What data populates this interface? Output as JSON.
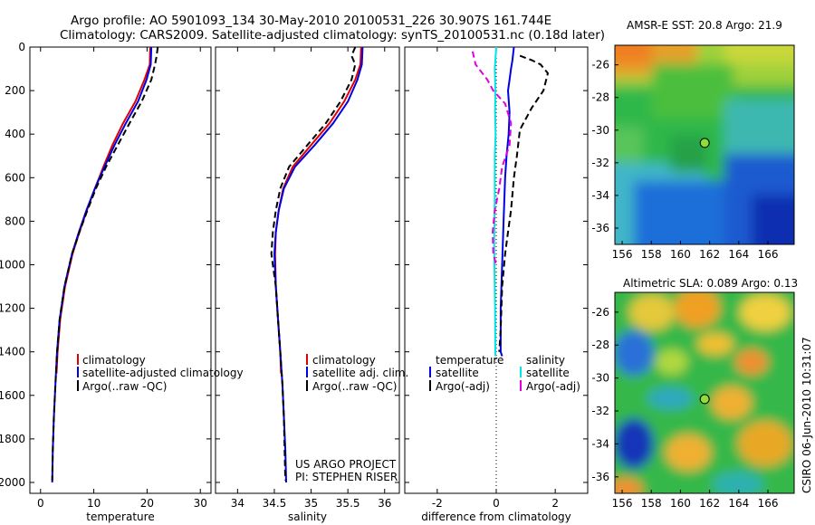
{
  "header": {
    "line1": "Argo profile: AO 5901093_134 30-May-2010 20100531_226 30.907S 161.744E",
    "line2": "Climatology: CARS2009. Satellite-adjusted climatology: synTS_20100531.nc (0.18d later)"
  },
  "side_stamp": "CSIRO 06-Jun-2010 10:31:07",
  "colors": {
    "red": "#e00000",
    "blue": "#0000e0",
    "black": "#000000",
    "cyan": "#00e5e5",
    "magenta": "#e000e0"
  },
  "chart_data": [
    {
      "id": "temperature",
      "type": "line",
      "xlabel": "temperature",
      "xlim": [
        -2,
        32
      ],
      "ylim": [
        2050,
        0
      ],
      "xticks": [
        0,
        10,
        20,
        30
      ],
      "yticks": [
        0,
        200,
        400,
        600,
        800,
        1000,
        1200,
        1400,
        1600,
        1800,
        2000
      ],
      "series": [
        {
          "name": "climatology",
          "color": "#e00000",
          "dash": "",
          "points": [
            [
              20.6,
              0
            ],
            [
              20.5,
              80
            ],
            [
              19.5,
              150
            ],
            [
              17.8,
              250
            ],
            [
              15.5,
              350
            ],
            [
              13.5,
              450
            ],
            [
              11.8,
              550
            ],
            [
              10.2,
              650
            ],
            [
              8.7,
              750
            ],
            [
              7.3,
              850
            ],
            [
              6.0,
              950
            ],
            [
              4.6,
              1100
            ],
            [
              3.7,
              1250
            ],
            [
              3.2,
              1400
            ],
            [
              3.0,
              1500
            ]
          ]
        },
        {
          "name": "satellite-adjusted climatology",
          "color": "#0000e0",
          "dash": "",
          "points": [
            [
              20.8,
              0
            ],
            [
              20.7,
              80
            ],
            [
              19.9,
              150
            ],
            [
              18.3,
              250
            ],
            [
              16.0,
              350
            ],
            [
              13.9,
              450
            ],
            [
              12.0,
              550
            ],
            [
              10.2,
              650
            ],
            [
              8.6,
              750
            ],
            [
              7.2,
              850
            ],
            [
              5.9,
              950
            ],
            [
              4.5,
              1100
            ],
            [
              3.6,
              1250
            ],
            [
              3.1,
              1400
            ],
            [
              2.8,
              1550
            ],
            [
              2.5,
              1700
            ],
            [
              2.3,
              1850
            ],
            [
              2.2,
              2000
            ]
          ]
        },
        {
          "name": "Argo(..raw -QC)",
          "color": "#000000",
          "dash": "7,4",
          "points": [
            [
              22.0,
              0
            ],
            [
              21.8,
              40
            ],
            [
              21.5,
              80
            ],
            [
              20.8,
              150
            ],
            [
              19.0,
              250
            ],
            [
              16.7,
              350
            ],
            [
              14.5,
              450
            ],
            [
              12.3,
              550
            ],
            [
              10.4,
              650
            ],
            [
              8.8,
              750
            ],
            [
              7.3,
              850
            ],
            [
              5.9,
              950
            ],
            [
              4.5,
              1100
            ],
            [
              3.6,
              1250
            ],
            [
              3.1,
              1400
            ],
            [
              2.8,
              1550
            ],
            [
              2.5,
              1700
            ],
            [
              2.3,
              1850
            ],
            [
              2.2,
              1990
            ]
          ]
        }
      ],
      "legend": [
        "climatology",
        "satellite-adjusted climatology",
        "Argo(..raw -QC)"
      ]
    },
    {
      "id": "salinity",
      "type": "line",
      "xlabel": "salinity",
      "xlim": [
        33.7,
        36.2
      ],
      "ylim": [
        2050,
        0
      ],
      "xticks": [
        34,
        34.5,
        35,
        35.5,
        36
      ],
      "xticklabels": [
        "34",
        "34.5",
        "35",
        "35.5",
        "36"
      ],
      "series": [
        {
          "name": "climatology",
          "color": "#e00000",
          "dash": "",
          "points": [
            [
              35.68,
              0
            ],
            [
              35.67,
              80
            ],
            [
              35.6,
              150
            ],
            [
              35.45,
              250
            ],
            [
              35.25,
              350
            ],
            [
              35.0,
              450
            ],
            [
              34.75,
              550
            ],
            [
              34.62,
              650
            ],
            [
              34.56,
              750
            ],
            [
              34.52,
              850
            ],
            [
              34.51,
              950
            ],
            [
              34.52,
              1100
            ],
            [
              34.55,
              1250
            ],
            [
              34.58,
              1400
            ],
            [
              34.59,
              1500
            ]
          ]
        },
        {
          "name": "satellite adj. clim.",
          "color": "#0000e0",
          "dash": "",
          "points": [
            [
              35.7,
              0
            ],
            [
              35.69,
              80
            ],
            [
              35.63,
              150
            ],
            [
              35.5,
              250
            ],
            [
              35.3,
              350
            ],
            [
              35.05,
              450
            ],
            [
              34.78,
              550
            ],
            [
              34.63,
              650
            ],
            [
              34.56,
              750
            ],
            [
              34.52,
              850
            ],
            [
              34.5,
              950
            ],
            [
              34.52,
              1100
            ],
            [
              34.55,
              1250
            ],
            [
              34.58,
              1400
            ],
            [
              34.61,
              1550
            ],
            [
              34.63,
              1700
            ],
            [
              34.65,
              1850
            ],
            [
              34.66,
              2000
            ]
          ]
        },
        {
          "name": "Argo(..raw -QC)",
          "color": "#000000",
          "dash": "7,4",
          "points": [
            [
              35.6,
              0
            ],
            [
              35.55,
              40
            ],
            [
              35.6,
              80
            ],
            [
              35.55,
              150
            ],
            [
              35.4,
              250
            ],
            [
              35.2,
              350
            ],
            [
              34.95,
              450
            ],
            [
              34.7,
              550
            ],
            [
              34.58,
              650
            ],
            [
              34.52,
              750
            ],
            [
              34.48,
              850
            ],
            [
              34.46,
              950
            ],
            [
              34.48,
              1000
            ],
            [
              34.52,
              1100
            ],
            [
              34.55,
              1250
            ],
            [
              34.58,
              1400
            ],
            [
              34.61,
              1550
            ],
            [
              34.63,
              1700
            ],
            [
              34.64,
              1850
            ],
            [
              34.65,
              1990
            ]
          ]
        }
      ],
      "legend": [
        "climatology",
        "satellite adj. clim.",
        "Argo(..raw -QC)"
      ],
      "credits": [
        "US ARGO PROJECT",
        "PI: STEPHEN RISER"
      ]
    },
    {
      "id": "difference",
      "type": "line",
      "xlabel": "difference from climatology",
      "xlim": [
        -3.1,
        3.1
      ],
      "ylim": [
        2050,
        0
      ],
      "xticks": [
        -2,
        0,
        2
      ],
      "zero_line": 0,
      "series": [
        {
          "name": "temperature satellite",
          "color": "#0000e0",
          "dash": "",
          "points": [
            [
              0.6,
              0
            ],
            [
              0.55,
              60
            ],
            [
              0.5,
              100
            ],
            [
              0.45,
              150
            ],
            [
              0.4,
              200
            ],
            [
              0.45,
              300
            ],
            [
              0.42,
              400
            ],
            [
              0.35,
              500
            ],
            [
              0.3,
              600
            ],
            [
              0.25,
              800
            ],
            [
              0.2,
              1000
            ],
            [
              0.15,
              1200
            ],
            [
              0.15,
              1400
            ],
            [
              0.2,
              1420
            ]
          ]
        },
        {
          "name": "temperature Argo(-adj)",
          "color": "#000000",
          "dash": "7,4",
          "points": [
            [
              0.8,
              40
            ],
            [
              1.2,
              60
            ],
            [
              1.5,
              80
            ],
            [
              1.75,
              120
            ],
            [
              1.6,
              200
            ],
            [
              1.2,
              280
            ],
            [
              0.8,
              380
            ],
            [
              0.7,
              500
            ],
            [
              0.6,
              600
            ],
            [
              0.5,
              750
            ],
            [
              0.4,
              850
            ],
            [
              0.3,
              950
            ],
            [
              0.2,
              1100
            ],
            [
              0.15,
              1300
            ],
            [
              0.1,
              1400
            ]
          ]
        },
        {
          "name": "salinity satellite",
          "color": "#00e5e5",
          "dash": "",
          "points": [
            [
              0.0,
              0
            ],
            [
              -0.05,
              100
            ],
            [
              -0.03,
              200
            ],
            [
              -0.04,
              300
            ],
            [
              -0.02,
              400
            ],
            [
              -0.05,
              500
            ],
            [
              -0.05,
              600
            ],
            [
              -0.05,
              700
            ],
            [
              -0.06,
              800
            ],
            [
              -0.07,
              900
            ],
            [
              -0.06,
              1000
            ],
            [
              -0.04,
              1200
            ],
            [
              -0.03,
              1420
            ]
          ]
        },
        {
          "name": "salinity Argo(-adj)",
          "color": "#e000e0",
          "dash": "7,4",
          "points": [
            [
              -0.8,
              20
            ],
            [
              -0.7,
              80
            ],
            [
              -0.3,
              150
            ],
            [
              -0.1,
              200
            ],
            [
              0.3,
              260
            ],
            [
              0.5,
              350
            ],
            [
              0.45,
              450
            ],
            [
              0.2,
              550
            ],
            [
              0.1,
              650
            ],
            [
              -0.05,
              750
            ],
            [
              -0.12,
              850
            ],
            [
              -0.1,
              950
            ],
            [
              0.0,
              1000
            ]
          ]
        }
      ],
      "legend_titles": [
        "temperature",
        "salinity"
      ],
      "legend": [
        "satellite",
        "Argo(-adj)",
        "satellite",
        "Argo(-adj)"
      ]
    },
    {
      "id": "sst_map",
      "type": "heatmap",
      "title": "AMSR-E SST: 20.8 Argo: 21.9",
      "xticks": [
        156,
        158,
        160,
        162,
        164,
        166
      ],
      "yticks": [
        -26,
        -28,
        -30,
        -32,
        -34,
        -36
      ],
      "xlim": [
        155.5,
        167.8
      ],
      "ylim": [
        -37.0,
        -24.8
      ],
      "marker": [
        161.744,
        -30.907
      ]
    },
    {
      "id": "sla_map",
      "type": "heatmap",
      "title": "Altimetric SLA: 0.089 Argo: 0.13",
      "xticks": [
        156,
        158,
        160,
        162,
        164,
        166
      ],
      "yticks": [
        -26,
        -28,
        -30,
        -32,
        -34,
        -36
      ],
      "xlim": [
        155.5,
        167.8
      ],
      "ylim": [
        -37.0,
        -24.8
      ],
      "marker": [
        161.744,
        -30.907
      ]
    }
  ]
}
